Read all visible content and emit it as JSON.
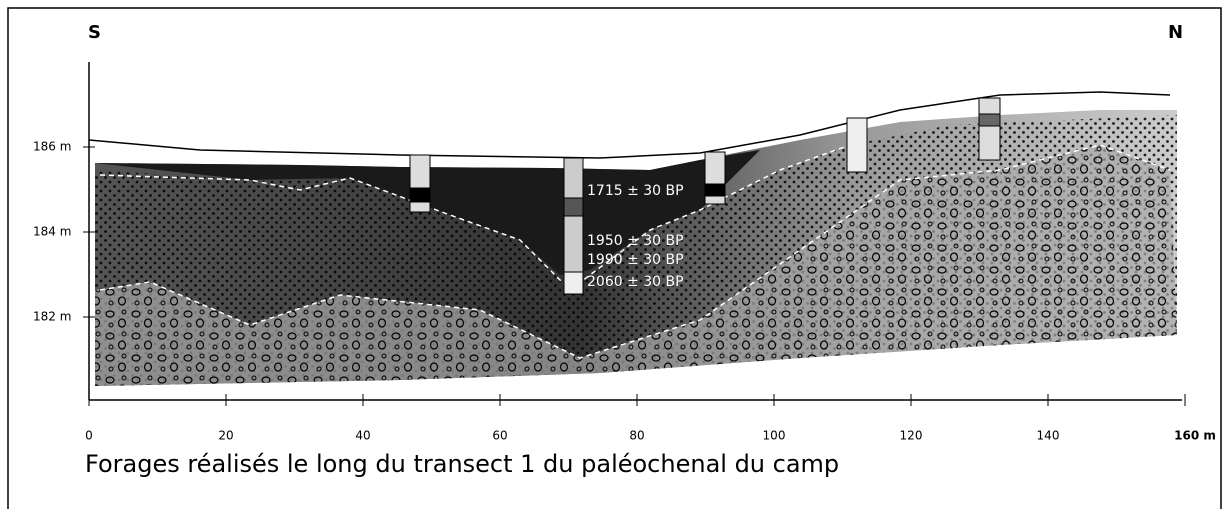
{
  "header": {
    "left": "S",
    "right": "N"
  },
  "y_axis": {
    "labels": [
      "186 m",
      "184 m",
      "182 m"
    ]
  },
  "x_axis": {
    "labels": [
      "0",
      "20",
      "40",
      "60",
      "80",
      "100",
      "120",
      "140",
      "160 m"
    ]
  },
  "dates": [
    "1715 ± 30 BP",
    "1950 ± 30 BP",
    "1990 ± 30 BP",
    "2060 ± 30 BP"
  ],
  "caption": "Forages réalisés le long du transect 1 du paléochenal du camp"
}
